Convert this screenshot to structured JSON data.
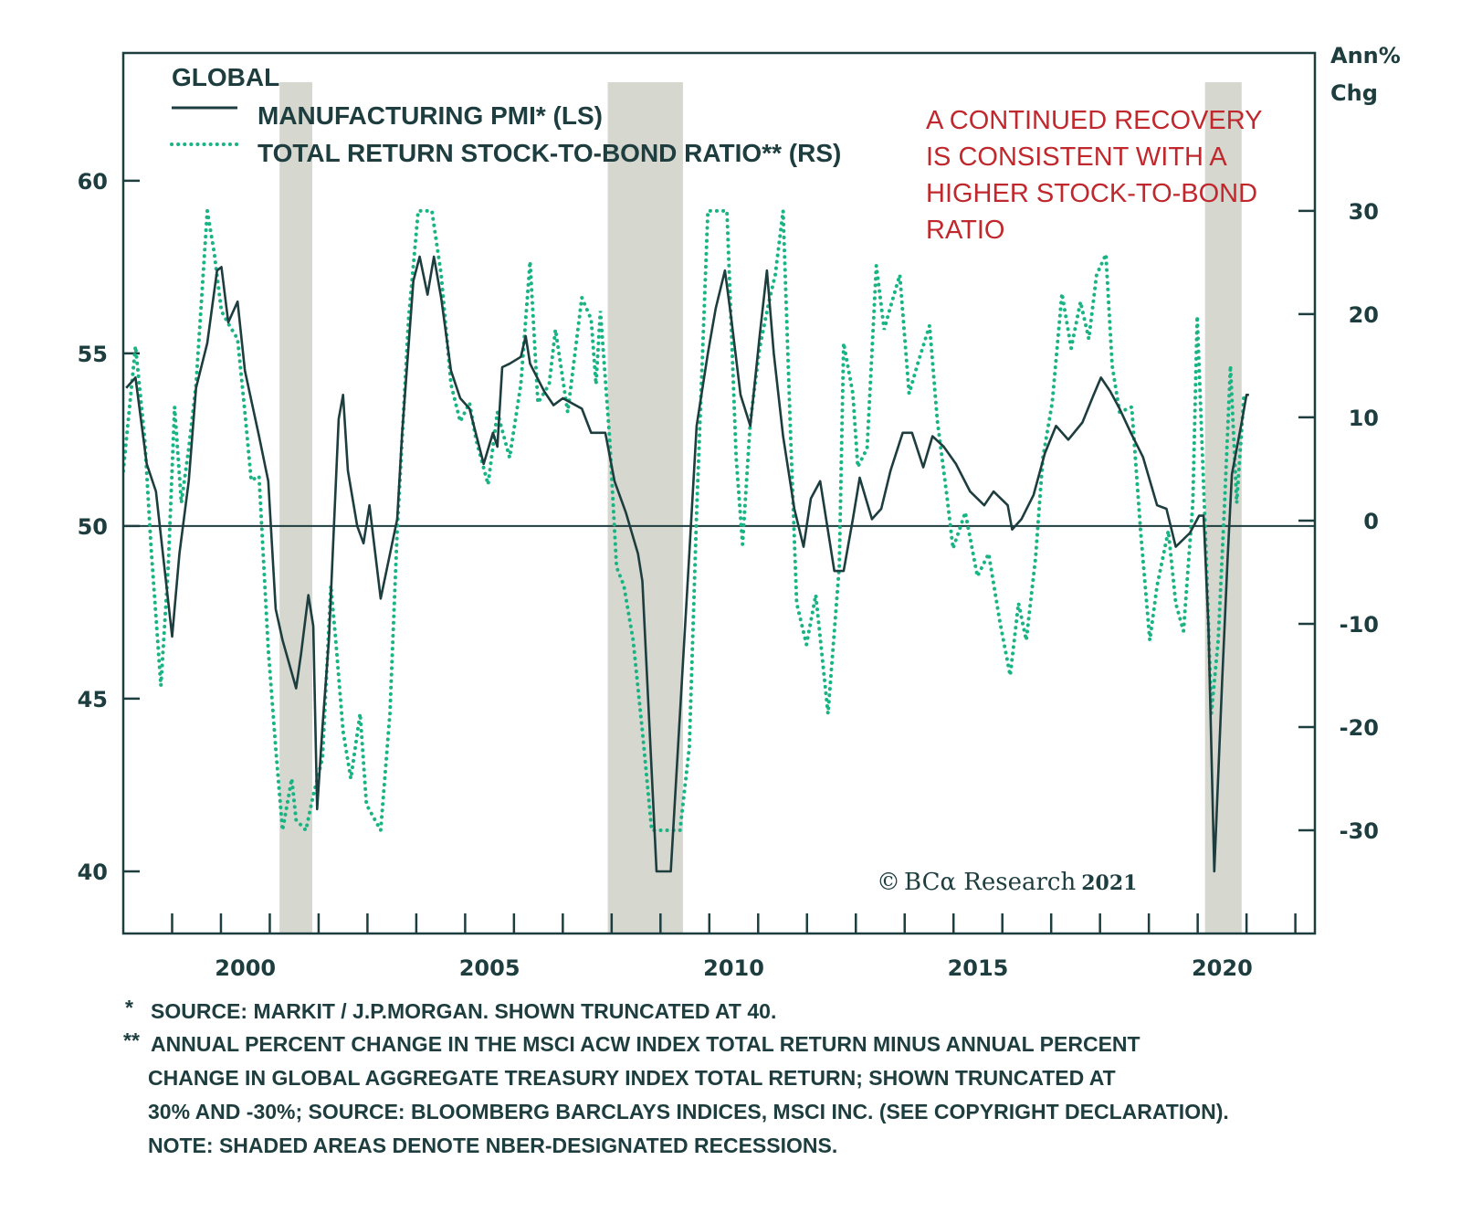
{
  "colors": {
    "pmi": "#1d3d3f",
    "ratio": "#19b384",
    "recession": "#d6d7cf",
    "axis": "#1d3d3f",
    "annotation": "#c0282d"
  },
  "chart_data": {
    "type": "line",
    "title": "GLOBAL",
    "xlabel": "",
    "ylabel_left": "",
    "ylabel_right": "Ann% Chg",
    "right_axis_label_lines": [
      "Ann%",
      "Chg"
    ],
    "xlim": [
      1998.0,
      2022.4
    ],
    "ylim_left": [
      38.2,
      63.7
    ],
    "ylim_right": [
      -40,
      45.3
    ],
    "x_ticks": [
      1999,
      2000,
      2001,
      2002,
      2003,
      2004,
      2005,
      2006,
      2007,
      2008,
      2009,
      2010,
      2011,
      2012,
      2013,
      2014,
      2015,
      2016,
      2017,
      2018,
      2019,
      2020,
      2021,
      2022
    ],
    "x_tick_labels": [
      {
        "year": 2000,
        "label": "2000"
      },
      {
        "year": 2005,
        "label": "2005"
      },
      {
        "year": 2010,
        "label": "2010"
      },
      {
        "year": 2015,
        "label": "2015"
      },
      {
        "year": 2020,
        "label": "2020"
      }
    ],
    "y_left_ticks": [
      {
        "value": 60,
        "label": "60"
      },
      {
        "value": 55,
        "label": "55"
      },
      {
        "value": 50,
        "label": "50"
      },
      {
        "value": 45,
        "label": "45"
      },
      {
        "value": 40,
        "label": "40"
      }
    ],
    "y_right_ticks": [
      {
        "value": 30,
        "label": "30"
      },
      {
        "value": 20,
        "label": "20"
      },
      {
        "value": 10,
        "label": "10"
      },
      {
        "value": 0,
        "label": "0"
      },
      {
        "value": -10,
        "label": "-10"
      },
      {
        "value": -20,
        "label": "-20"
      },
      {
        "value": -30,
        "label": "-30"
      }
    ],
    "reference_line_left": 50,
    "recessions": [
      [
        2001.2,
        2001.87
      ],
      [
        2007.92,
        2009.46
      ],
      [
        2020.15,
        2020.9
      ]
    ],
    "legend": {
      "placement": "top-left",
      "entries": [
        "MANUFACTURING PMI* (LS)",
        "TOTAL RETURN STOCK-TO-BOND RATIO** (RS)"
      ]
    },
    "annotation": [
      "A CONTINUED RECOVERY",
      "IS CONSISTENT WITH A",
      "HIGHER STOCK-TO-BOND",
      "RATIO"
    ],
    "series": [
      {
        "name": "MANUFACTURING PMI* (LS)",
        "axis": "left",
        "style": "solid",
        "x": [
          1998.06,
          1998.25,
          1998.48,
          1998.67,
          1999.0,
          1999.15,
          1999.34,
          1999.49,
          1999.72,
          1999.92,
          2000.01,
          2000.15,
          2000.34,
          2000.49,
          2000.78,
          2000.97,
          2001.12,
          2001.26,
          2001.54,
          2001.64,
          2001.79,
          2001.89,
          2001.97,
          2002.08,
          2002.21,
          2002.41,
          2002.5,
          2002.6,
          2002.79,
          2002.92,
          2003.04,
          2003.27,
          2003.61,
          2003.71,
          2003.94,
          2004.07,
          2004.23,
          2004.36,
          2004.51,
          2004.71,
          2004.9,
          2005.09,
          2005.38,
          2005.57,
          2005.66,
          2005.76,
          2005.91,
          2006.14,
          2006.24,
          2006.33,
          2006.62,
          2006.81,
          2007.0,
          2007.39,
          2007.58,
          2007.87,
          2008.06,
          2008.29,
          2008.54,
          2008.63,
          2008.92,
          2009.21,
          2009.59,
          2009.74,
          2009.97,
          2010.13,
          2010.32,
          2010.45,
          2010.64,
          2010.84,
          2011.03,
          2011.18,
          2011.32,
          2011.51,
          2011.74,
          2011.93,
          2012.08,
          2012.27,
          2012.56,
          2012.75,
          2012.94,
          2013.08,
          2013.33,
          2013.52,
          2013.71,
          2013.96,
          2014.15,
          2014.38,
          2014.57,
          2014.8,
          2015.05,
          2015.34,
          2015.63,
          2015.82,
          2016.11,
          2016.2,
          2016.39,
          2016.64,
          2016.87,
          2017.1,
          2017.35,
          2017.64,
          2017.87,
          2018.02,
          2018.21,
          2018.4,
          2018.63,
          2018.88,
          2019.17,
          2019.36,
          2019.55,
          2019.84,
          2020.03,
          2020.12,
          2020.22,
          2020.34,
          2020.5,
          2020.61,
          2020.7,
          2020.9,
          2021.0,
          2021.05
        ],
        "values": [
          54.0,
          54.3,
          51.8,
          51.0,
          46.8,
          49.2,
          51.3,
          54.0,
          55.3,
          57.4,
          57.5,
          55.9,
          56.5,
          54.5,
          52.6,
          51.3,
          47.6,
          46.7,
          45.3,
          46.3,
          48.0,
          47.1,
          41.8,
          44.2,
          46.7,
          53.1,
          53.8,
          51.6,
          50.0,
          49.5,
          50.6,
          47.9,
          50.2,
          52.7,
          57.1,
          57.8,
          56.7,
          57.8,
          56.6,
          54.5,
          53.7,
          53.4,
          51.8,
          52.7,
          52.3,
          54.6,
          54.7,
          54.9,
          55.5,
          54.7,
          53.9,
          53.5,
          53.7,
          53.4,
          52.7,
          52.7,
          51.3,
          50.4,
          49.2,
          48.4,
          40.0,
          40.0,
          49.2,
          52.9,
          55.0,
          56.3,
          57.4,
          56.0,
          53.8,
          52.9,
          55.5,
          57.4,
          55.0,
          52.6,
          50.5,
          49.4,
          50.8,
          51.3,
          48.7,
          48.7,
          50.2,
          51.4,
          50.2,
          50.5,
          51.6,
          52.7,
          52.7,
          51.7,
          52.6,
          52.3,
          51.8,
          51.0,
          50.6,
          51.0,
          50.6,
          49.9,
          50.2,
          50.9,
          52.1,
          52.9,
          52.5,
          53.0,
          53.8,
          54.3,
          53.9,
          53.4,
          52.7,
          52.0,
          50.6,
          50.5,
          49.4,
          49.8,
          50.3,
          50.3,
          47.1,
          40.0,
          45.5,
          49.0,
          51.5,
          53.0,
          53.8,
          53.8
        ]
      },
      {
        "name": "TOTAL RETURN STOCK-TO-BOND RATIO** (RS)",
        "axis": "right",
        "style": "dotted",
        "x": [
          1998.0,
          1998.25,
          1998.44,
          1998.57,
          1998.77,
          1998.92,
          1999.05,
          1999.19,
          1999.34,
          1999.49,
          1999.72,
          1999.86,
          2000.01,
          2000.16,
          2000.34,
          2000.49,
          2000.62,
          2000.78,
          2000.97,
          2001.12,
          2001.26,
          2001.45,
          2001.54,
          2001.74,
          2001.89,
          2002.08,
          2002.25,
          2002.35,
          2002.5,
          2002.66,
          2002.85,
          2002.98,
          2003.27,
          2003.46,
          2003.61,
          2003.84,
          2004.04,
          2004.32,
          2004.51,
          2004.71,
          2004.9,
          2005.09,
          2005.22,
          2005.47,
          2005.66,
          2005.91,
          2006.14,
          2006.33,
          2006.49,
          2006.72,
          2006.85,
          2007.1,
          2007.39,
          2007.58,
          2007.68,
          2007.77,
          2007.96,
          2008.1,
          2008.25,
          2008.44,
          2008.63,
          2008.82,
          2009.4,
          2009.59,
          2009.74,
          2009.97,
          2010.36,
          2010.55,
          2010.68,
          2010.84,
          2011.03,
          2011.22,
          2011.35,
          2011.51,
          2011.66,
          2011.79,
          2011.99,
          2012.18,
          2012.43,
          2012.66,
          2012.75,
          2012.94,
          2013.04,
          2013.23,
          2013.42,
          2013.58,
          2013.71,
          2013.9,
          2014.09,
          2014.28,
          2014.51,
          2014.67,
          2014.86,
          2014.99,
          2015.24,
          2015.49,
          2015.72,
          2015.95,
          2016.16,
          2016.33,
          2016.49,
          2016.68,
          2016.83,
          2017.02,
          2017.22,
          2017.41,
          2017.6,
          2017.77,
          2017.93,
          2018.12,
          2018.25,
          2018.4,
          2018.65,
          2018.83,
          2019.02,
          2019.17,
          2019.4,
          2019.55,
          2019.71,
          2019.9,
          2019.99,
          2020.17,
          2020.28,
          2020.42,
          2020.55,
          2020.67,
          2020.8,
          2020.95
        ],
        "values": [
          4.8,
          16.9,
          7.9,
          -2.7,
          -16.0,
          -4.5,
          11.0,
          1.7,
          7.0,
          13.2,
          30.0,
          26.0,
          20.3,
          19.0,
          17.6,
          10.5,
          3.9,
          4.3,
          -12.5,
          -22.0,
          -30.0,
          -25.0,
          -29.0,
          -30.0,
          -26.6,
          -23.0,
          -6.3,
          -11.6,
          -20.4,
          -25.0,
          -18.7,
          -27.5,
          -30.0,
          -18.7,
          -1.0,
          19.4,
          30.0,
          30.0,
          23.8,
          13.2,
          9.6,
          11.4,
          7.9,
          3.5,
          10.5,
          6.1,
          13.2,
          25.1,
          11.4,
          13.2,
          18.5,
          10.5,
          21.6,
          19.5,
          13.2,
          20.3,
          7.9,
          -4.5,
          -6.3,
          -11.6,
          -20.4,
          -30.0,
          -30.0,
          -22.0,
          0.8,
          30.0,
          30.0,
          6.1,
          -2.3,
          9.6,
          16.7,
          21.2,
          23.8,
          30.0,
          8.8,
          -8.0,
          -12.0,
          -7.2,
          -18.7,
          -4.5,
          17.2,
          12.3,
          5.2,
          7.0,
          24.7,
          18.5,
          20.7,
          23.8,
          12.3,
          15.4,
          18.9,
          9.6,
          2.6,
          -2.7,
          0.8,
          -5.4,
          -3.2,
          -9.8,
          -15.0,
          -8.0,
          -11.6,
          -3.6,
          6.1,
          11.4,
          22.0,
          16.7,
          21.2,
          17.6,
          23.8,
          25.8,
          15.0,
          10.5,
          11.0,
          -1.0,
          -11.6,
          -6.3,
          -1.0,
          -8.0,
          -10.7,
          1.7,
          19.8,
          -2.7,
          -18.7,
          -11.6,
          1.7,
          15.0,
          1.7,
          12.3
        ]
      }
    ]
  },
  "copyright": {
    "symbol": "©",
    "brand": "BCα Research",
    "year": "2021"
  },
  "footnotes": [
    {
      "marker": "*",
      "text": "SOURCE: MARKIT / J.P.MORGAN. SHOWN TRUNCATED AT 40."
    },
    {
      "marker": "**",
      "text": "ANNUAL PERCENT CHANGE IN THE MSCI ACW INDEX TOTAL RETURN MINUS ANNUAL PERCENT"
    },
    {
      "marker": "",
      "text": "CHANGE IN GLOBAL AGGREGATE TREASURY INDEX TOTAL RETURN; SHOWN TRUNCATED AT"
    },
    {
      "marker": "",
      "text": "30% AND -30%; SOURCE: BLOOMBERG BARCLAYS INDICES, MSCI INC. (SEE COPYRIGHT DECLARATION)."
    },
    {
      "marker": "",
      "text": "NOTE: SHADED AREAS DENOTE NBER-DESIGNATED RECESSIONS."
    }
  ]
}
